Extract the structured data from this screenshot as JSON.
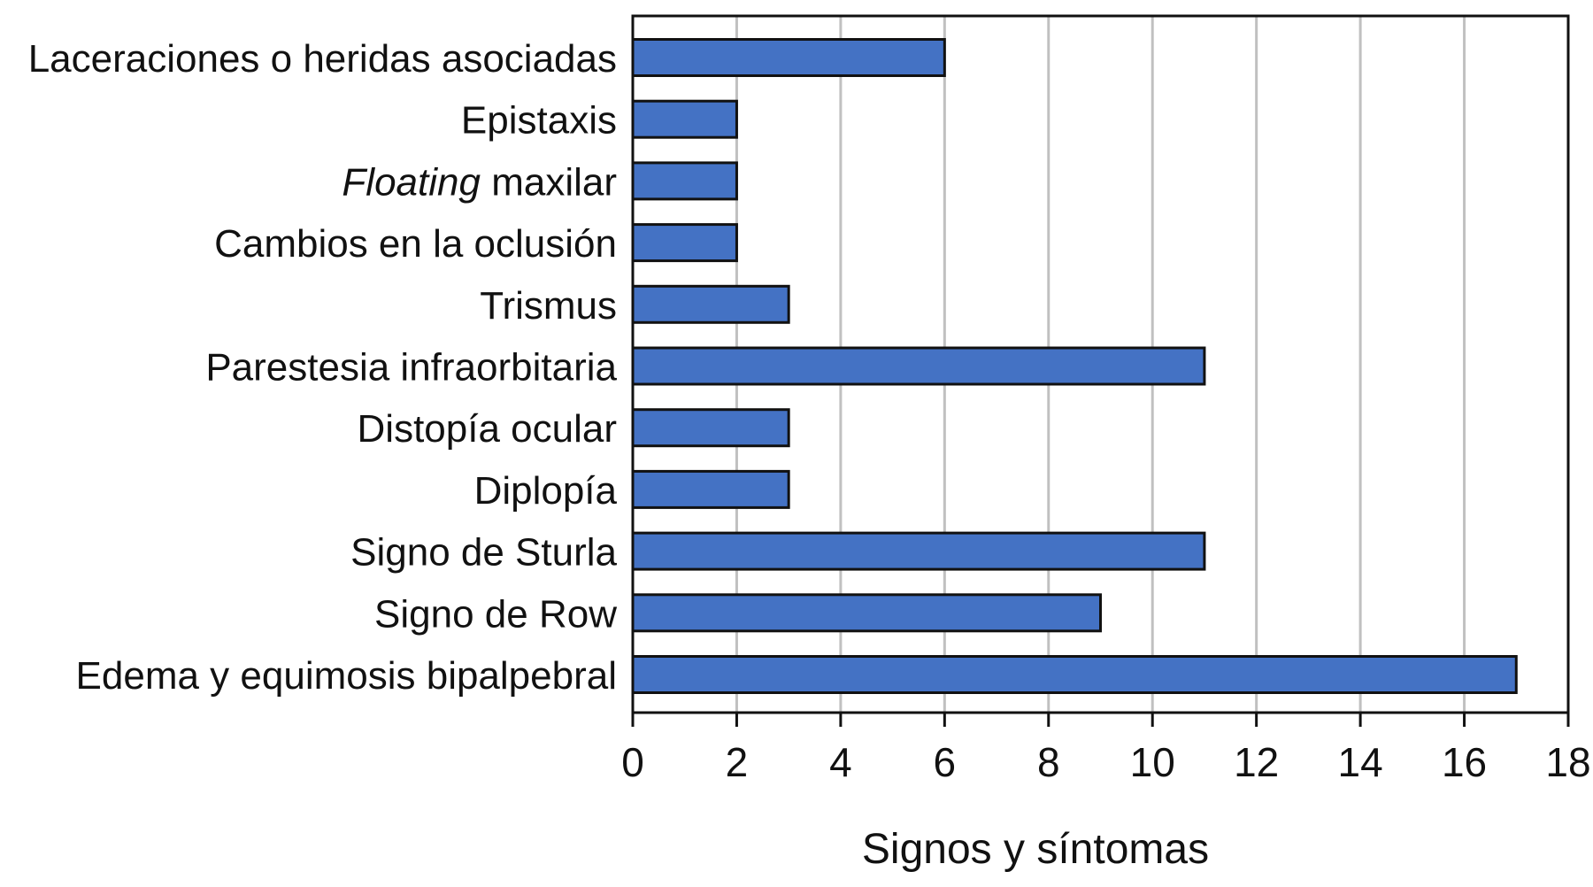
{
  "chart_data": {
    "type": "bar",
    "orientation": "horizontal",
    "categories": [
      "Laceraciones o heridas asociadas",
      "Epistaxis",
      "Floating maxilar",
      "Cambios en la oclusión",
      "Trismus",
      "Parestesia infraorbitaria",
      "Distopía ocular",
      "Diplopía",
      "Signo de Sturla",
      "Signo de Row",
      "Edema y equimosis bipalpebral"
    ],
    "values": [
      6,
      2,
      2,
      2,
      3,
      11,
      3,
      3,
      11,
      9,
      17
    ],
    "xlabel": "Signos y síntomas",
    "ylabel": "",
    "title": "",
    "xlim": [
      0,
      18
    ],
    "xticks": [
      "0",
      "2",
      "4",
      "6",
      "8",
      "10",
      "12",
      "14",
      "16",
      "18"
    ],
    "grid": "vertical",
    "legend": "none",
    "bar_color": "#4472c4",
    "italic_word": "Floating"
  }
}
